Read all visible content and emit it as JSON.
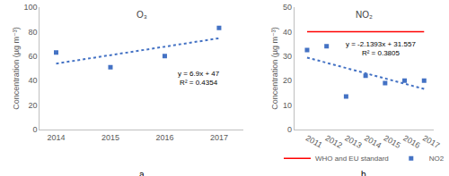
{
  "chart_data": [
    {
      "type": "scatter",
      "title": "O₃",
      "panel": "a",
      "x": [
        2014,
        2015,
        2016,
        2017
      ],
      "series": [
        {
          "type": "scatter",
          "color": "#4472c4",
          "marker": "square",
          "values": [
            63,
            51,
            60,
            83
          ]
        },
        {
          "type": "line",
          "color": "#4472c4",
          "line_style": "dot",
          "values": [
            53.9,
            60.8,
            67.7,
            74.6
          ]
        }
      ],
      "annotations": [
        "y = 6.9x + 47",
        "R² = 0.4354"
      ],
      "ylabel": "Concentration (µg m⁻³)",
      "xlim": [
        2013.7,
        2017.45
      ],
      "xticks": [
        2014,
        2015,
        2016,
        2017
      ],
      "ylim": [
        0,
        100
      ],
      "yticks": [
        0,
        20,
        40,
        60,
        80,
        100
      ],
      "grid": false
    },
    {
      "type": "scatter",
      "title": "NO₂",
      "panel": "b",
      "x": [
        2011,
        2012,
        2013,
        2014,
        2015,
        2016,
        2017
      ],
      "series": [
        {
          "name": "WHO and EU standard",
          "type": "line",
          "color": "#ff0000",
          "line_style": "solid",
          "values": [
            40,
            40,
            40,
            40,
            40,
            40,
            40
          ]
        },
        {
          "name": "NO2",
          "type": "scatter",
          "color": "#4472c4",
          "marker": "square",
          "values": [
            32.5,
            34,
            13.5,
            22,
            19,
            20,
            20
          ]
        },
        {
          "type": "line",
          "color": "#4472c4",
          "line_style": "dot",
          "values": [
            29.4,
            27.3,
            25.1,
            23.0,
            20.9,
            18.7,
            16.6
          ]
        }
      ],
      "annotations": [
        "y = -2.1393x + 31.557",
        "R² = 0.3805"
      ],
      "ylabel": "Concentration (µg m⁻³)",
      "xlim": [
        2010.35,
        2017.5
      ],
      "xticks": [
        2011,
        2012,
        2013,
        2014,
        2015,
        2016,
        2017
      ],
      "ylim": [
        0,
        50
      ],
      "yticks": [
        0,
        10,
        20,
        30,
        40,
        50
      ],
      "grid": false,
      "legend": "bottom"
    }
  ]
}
